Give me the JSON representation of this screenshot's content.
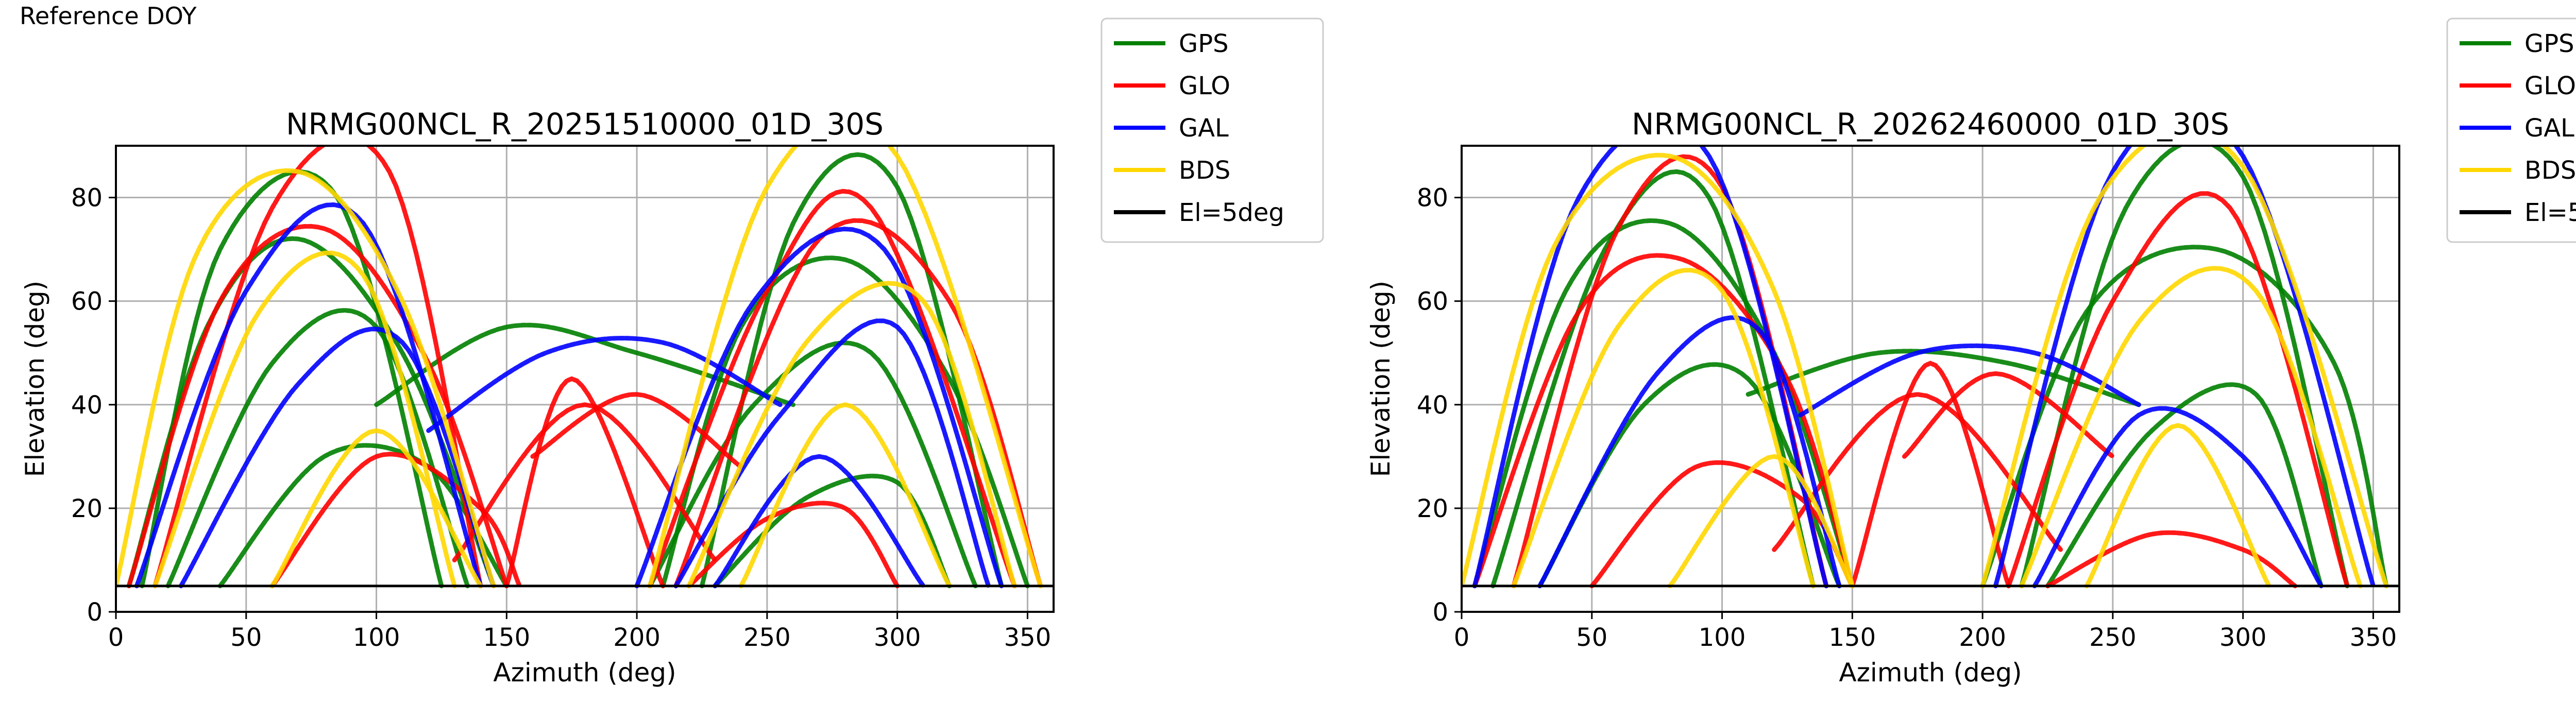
{
  "page": {
    "note": "Reference DOY"
  },
  "legend_entries": [
    {
      "label": "GPS",
      "color": "#008000"
    },
    {
      "label": "GLO",
      "color": "#ff0000"
    },
    {
      "label": "GAL",
      "color": "#0000ff"
    },
    {
      "label": "BDS",
      "color": "#ffd700"
    },
    {
      "label": "El=5deg",
      "color": "#000000"
    }
  ],
  "chart_data": [
    {
      "type": "scatter",
      "title": "NRMG00NCL_R_20251510000_01D_30S",
      "xlabel": "Azimuth (deg)",
      "ylabel": "Elevation (deg)",
      "xlim": [
        0,
        360
      ],
      "ylim": [
        0,
        90
      ],
      "xticks": [
        0,
        50,
        100,
        150,
        200,
        250,
        300,
        350
      ],
      "yticks": [
        0,
        20,
        40,
        60,
        80
      ],
      "grid": true,
      "legend_position": "outside-right-top",
      "elevation_mask": 5,
      "series": [
        {
          "name": "GPS",
          "color": "#008000",
          "arcs": [
            {
              "az": [
                5,
                35,
                70,
                110,
                145
              ],
              "el": [
                5,
                55,
                72,
                50,
                5
              ]
            },
            {
              "az": [
                10,
                40,
                85,
                125
              ],
              "el": [
                5,
                70,
                80,
                5
              ]
            },
            {
              "az": [
                20,
                60,
                100,
                135
              ],
              "el": [
                5,
                48,
                55,
                5
              ]
            },
            {
              "az": [
                40,
                80,
                120,
                150
              ],
              "el": [
                5,
                30,
                28,
                5
              ]
            },
            {
              "az": [
                210,
                240,
                280,
                320,
                350
              ],
              "el": [
                5,
                55,
                68,
                45,
                5
              ]
            },
            {
              "az": [
                225,
                260,
                300,
                340
              ],
              "el": [
                5,
                75,
                82,
                5
              ]
            },
            {
              "az": [
                205,
                245,
                290,
                330
              ],
              "el": [
                5,
                40,
                50,
                5
              ]
            },
            {
              "az": [
                230,
                265,
                300,
                320
              ],
              "el": [
                5,
                22,
                25,
                5
              ]
            },
            {
              "az": [
                100,
                150,
                200,
                260
              ],
              "el": [
                40,
                55,
                50,
                40
              ]
            }
          ]
        },
        {
          "name": "GLO",
          "color": "#ff0000",
          "arcs": [
            {
              "az": [
                5,
                40,
                80,
                120,
                150
              ],
              "el": [
                5,
                60,
                74,
                48,
                5
              ]
            },
            {
              "az": [
                15,
                60,
                105,
                140
              ],
              "el": [
                5,
                78,
                85,
                5
              ]
            },
            {
              "az": [
                60,
                100,
                140,
                155
              ],
              "el": [
                5,
                30,
                20,
                5
              ]
            },
            {
              "az": [
                205,
                250,
                290,
                345
              ],
              "el": [
                5,
                62,
                78,
                5
              ]
            },
            {
              "az": [
                215,
                270,
                320,
                355
              ],
              "el": [
                5,
                72,
                60,
                5
              ]
            },
            {
              "az": [
                220,
                250,
                280,
                300
              ],
              "el": [
                5,
                18,
                20,
                5
              ]
            },
            {
              "az": [
                150,
                175,
                210
              ],
              "el": [
                5,
                45,
                5
              ]
            },
            {
              "az": [
                130,
                180,
                230
              ],
              "el": [
                10,
                40,
                10
              ]
            },
            {
              "az": [
                160,
                200,
                240
              ],
              "el": [
                30,
                42,
                28
              ]
            }
          ]
        },
        {
          "name": "GAL",
          "color": "#0000ff",
          "arcs": [
            {
              "az": [
                8,
                50,
                95,
                140
              ],
              "el": [
                5,
                62,
                75,
                5
              ]
            },
            {
              "az": [
                25,
                70,
                110,
                145
              ],
              "el": [
                5,
                44,
                52,
                5
              ]
            },
            {
              "az": [
                200,
                245,
                295,
                340
              ],
              "el": [
                5,
                60,
                70,
                5
              ]
            },
            {
              "az": [
                215,
                255,
                300,
                335
              ],
              "el": [
                5,
                38,
                55,
                5
              ]
            },
            {
              "az": [
                230,
                270,
                310
              ],
              "el": [
                5,
                30,
                5
              ]
            },
            {
              "az": [
                120,
                165,
                210,
                255
              ],
              "el": [
                35,
                50,
                52,
                40
              ]
            }
          ]
        },
        {
          "name": "BDS",
          "color": "#ffd700",
          "arcs": [
            {
              "az": [
                0,
                30,
                70,
                110,
                145
              ],
              "el": [
                5,
                68,
                85,
                60,
                5
              ]
            },
            {
              "az": [
                15,
                55,
                95,
                130
              ],
              "el": [
                5,
                58,
                65,
                5
              ]
            },
            {
              "az": [
                205,
                250,
                300,
                355
              ],
              "el": [
                5,
                82,
                88,
                5
              ]
            },
            {
              "az": [
                220,
                265,
                310,
                345
              ],
              "el": [
                5,
                52,
                60,
                5
              ]
            },
            {
              "az": [
                60,
                100,
                140
              ],
              "el": [
                5,
                35,
                5
              ]
            },
            {
              "az": [
                240,
                280,
                320
              ],
              "el": [
                5,
                40,
                5
              ]
            }
          ]
        }
      ]
    },
    {
      "type": "scatter",
      "title": "NRMG00NCL_R_20262460000_01D_30S",
      "xlabel": "Azimuth (deg)",
      "ylabel": "Elevation (deg)",
      "xlim": [
        0,
        360
      ],
      "ylim": [
        0,
        90
      ],
      "xticks": [
        0,
        50,
        100,
        150,
        200,
        250,
        300,
        350
      ],
      "yticks": [
        0,
        20,
        40,
        60,
        80
      ],
      "grid": true,
      "legend_position": "outside-right-top",
      "elevation_mask": 5,
      "series": [
        {
          "name": "GPS",
          "color": "#008000",
          "arcs": [
            {
              "az": [
                5,
                40,
                80,
                120,
                150
              ],
              "el": [
                5,
                62,
                75,
                50,
                5
              ]
            },
            {
              "az": [
                12,
                55,
                95,
                135
              ],
              "el": [
                5,
                70,
                80,
                5
              ]
            },
            {
              "az": [
                30,
                70,
                110,
                145
              ],
              "el": [
                5,
                40,
                45,
                5
              ]
            },
            {
              "az": [
                200,
                240,
                290,
                335,
                355
              ],
              "el": [
                5,
                58,
                70,
                48,
                5
              ]
            },
            {
              "az": [
                215,
                255,
                300,
                340
              ],
              "el": [
                5,
                78,
                84,
                5
              ]
            },
            {
              "az": [
                225,
                265,
                305,
                330
              ],
              "el": [
                5,
                35,
                42,
                5
              ]
            },
            {
              "az": [
                110,
                160,
                210,
                260
              ],
              "el": [
                42,
                50,
                48,
                40
              ]
            }
          ]
        },
        {
          "name": "GLO",
          "color": "#ff0000",
          "arcs": [
            {
              "az": [
                5,
                45,
                85,
                125,
                150
              ],
              "el": [
                5,
                58,
                68,
                45,
                5
              ]
            },
            {
              "az": [
                20,
                60,
                100,
                140
              ],
              "el": [
                5,
                74,
                82,
                5
              ]
            },
            {
              "az": [
                50,
                90,
                130,
                150
              ],
              "el": [
                5,
                28,
                22,
                5
              ]
            },
            {
              "az": [
                210,
                250,
                295,
                340
              ],
              "el": [
                5,
                60,
                78,
                5
              ]
            },
            {
              "az": [
                225,
                265,
                300,
                320
              ],
              "el": [
                5,
                15,
                12,
                5
              ]
            },
            {
              "az": [
                150,
                180,
                210
              ],
              "el": [
                5,
                48,
                5
              ]
            },
            {
              "az": [
                120,
                175,
                230
              ],
              "el": [
                12,
                42,
                12
              ]
            },
            {
              "az": [
                170,
                205,
                250
              ],
              "el": [
                30,
                46,
                30
              ]
            }
          ]
        },
        {
          "name": "GAL",
          "color": "#0000ff",
          "arcs": [
            {
              "az": [
                5,
                45,
                95,
                140
              ],
              "el": [
                5,
                80,
                88,
                5
              ]
            },
            {
              "az": [
                30,
                75,
                115,
                145
              ],
              "el": [
                5,
                46,
                54,
                5
              ]
            },
            {
              "az": [
                205,
                250,
                300,
                350
              ],
              "el": [
                5,
                85,
                88,
                5
              ]
            },
            {
              "az": [
                220,
                260,
                300,
                330
              ],
              "el": [
                5,
                38,
                30,
                5
              ]
            },
            {
              "az": [
                130,
                175,
                220,
                260
              ],
              "el": [
                38,
                50,
                50,
                40
              ]
            }
          ]
        },
        {
          "name": "BDS",
          "color": "#ffd700",
          "arcs": [
            {
              "az": [
                0,
                35,
                80,
                120,
                150
              ],
              "el": [
                5,
                70,
                88,
                62,
                5
              ]
            },
            {
              "az": [
                20,
                60,
                100,
                135
              ],
              "el": [
                5,
                55,
                62,
                5
              ]
            },
            {
              "az": [
                200,
                245,
                300,
                355
              ],
              "el": [
                5,
                80,
                86,
                5
              ]
            },
            {
              "az": [
                215,
                260,
                305,
                345
              ],
              "el": [
                5,
                56,
                62,
                5
              ]
            },
            {
              "az": [
                80,
                120,
                150
              ],
              "el": [
                5,
                30,
                5
              ]
            },
            {
              "az": [
                240,
                275,
                310
              ],
              "el": [
                5,
                36,
                5
              ]
            }
          ]
        }
      ]
    }
  ]
}
